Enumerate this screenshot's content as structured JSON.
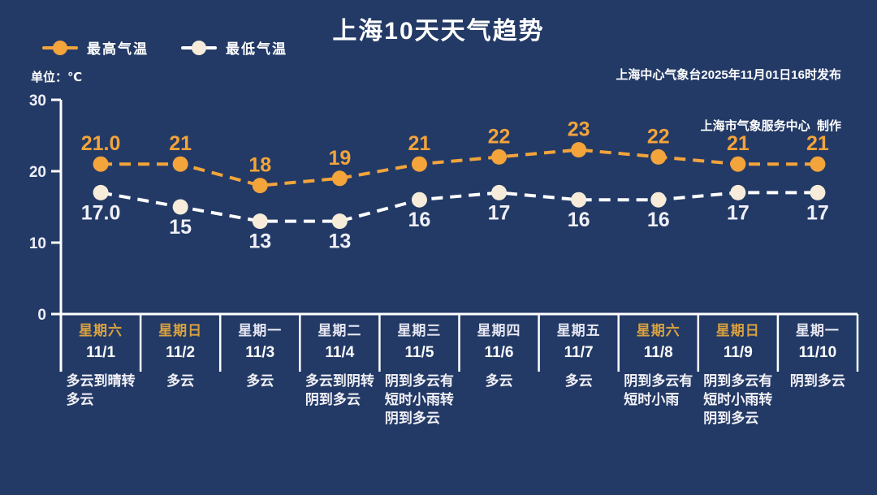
{
  "title": "上海10天天气趋势",
  "source": {
    "line1": "上海中心气象台2025年11月01日16时发布",
    "line2": "上海市气象服务中心  制作"
  },
  "unit_label": "单位：℃",
  "colors": {
    "background": "#233A66",
    "high": "#F3A43B",
    "low_line": "#FFFFFF",
    "low_marker": "#F6ECD9",
    "low_label": "#EFEFF8",
    "weekend_text": "#D9A13F",
    "weekday_text": "#E6E6F2",
    "axis": "#FFFFFF"
  },
  "chart_data": {
    "type": "line",
    "title": "上海10天天气趋势",
    "ylabel": "单位：℃",
    "ylim": [
      0,
      30
    ],
    "yticks": [
      0,
      10,
      20,
      30
    ],
    "grid": false,
    "legend_position": "top-left",
    "line_style": "dashed",
    "categories": [
      "11/1",
      "11/2",
      "11/3",
      "11/4",
      "11/5",
      "11/6",
      "11/7",
      "11/8",
      "11/9",
      "11/10"
    ],
    "series": [
      {
        "name": "最高气温",
        "color": "#F3A43B",
        "marker_color": "#F3A43B",
        "label_color": "#F3A43B",
        "values": [
          21.0,
          21,
          18,
          19,
          21,
          22,
          23,
          22,
          21,
          21
        ],
        "point_labels": [
          "21.0",
          "21",
          "18",
          "19",
          "21",
          "22",
          "23",
          "22",
          "21",
          "21"
        ]
      },
      {
        "name": "最低气温",
        "color": "#FFFFFF",
        "marker_color": "#F6ECD9",
        "label_color": "#EFEFF8",
        "values": [
          17.0,
          15,
          13,
          13,
          16,
          17,
          16,
          16,
          17,
          17
        ],
        "point_labels": [
          "17.0",
          "15",
          "13",
          "13",
          "16",
          "17",
          "16",
          "16",
          "17",
          "17"
        ]
      }
    ]
  },
  "x_axis": {
    "days": [
      {
        "week": "星期六",
        "weekend": true,
        "date": "11/1",
        "weather_lines": [
          "多云到晴转",
          "多云"
        ]
      },
      {
        "week": "星期日",
        "weekend": true,
        "date": "11/2",
        "weather_lines": [
          "多云"
        ]
      },
      {
        "week": "星期一",
        "weekend": false,
        "date": "11/3",
        "weather_lines": [
          "多云"
        ]
      },
      {
        "week": "星期二",
        "weekend": false,
        "date": "11/4",
        "weather_lines": [
          "多云到阴转",
          "阴到多云"
        ]
      },
      {
        "week": "星期三",
        "weekend": false,
        "date": "11/5",
        "weather_lines": [
          "阴到多云有",
          "短时小雨转",
          "阴到多云"
        ]
      },
      {
        "week": "星期四",
        "weekend": false,
        "date": "11/6",
        "weather_lines": [
          "多云"
        ]
      },
      {
        "week": "星期五",
        "weekend": false,
        "date": "11/7",
        "weather_lines": [
          "多云"
        ]
      },
      {
        "week": "星期六",
        "weekend": true,
        "date": "11/8",
        "weather_lines": [
          "阴到多云有",
          "短时小雨"
        ]
      },
      {
        "week": "星期日",
        "weekend": true,
        "date": "11/9",
        "weather_lines": [
          "阴到多云有",
          "短时小雨转",
          "阴到多云"
        ]
      },
      {
        "week": "星期一",
        "weekend": false,
        "date": "11/10",
        "weather_lines": [
          "阴到多云"
        ]
      }
    ]
  }
}
